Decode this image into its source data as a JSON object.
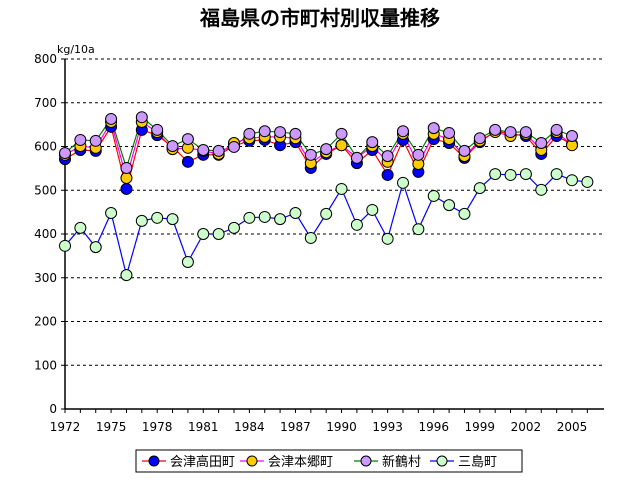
{
  "chart_data": {
    "type": "line",
    "title": "福島県の市町村別収量推移",
    "ylabel": "kg/10a",
    "xlabel": "",
    "ylim": [
      0,
      800
    ],
    "yticks": [
      0,
      100,
      200,
      300,
      400,
      500,
      600,
      700,
      800
    ],
    "xlim": [
      1972,
      2006
    ],
    "xticks": [
      1972,
      1975,
      1978,
      1981,
      1984,
      1987,
      1990,
      1993,
      1996,
      1999,
      2002,
      2005
    ],
    "grid": "horizontal dashed",
    "legend": "bottom",
    "x": [
      1972,
      1973,
      1974,
      1975,
      1976,
      1977,
      1978,
      1979,
      1980,
      1981,
      1982,
      1983,
      1984,
      1985,
      1986,
      1987,
      1988,
      1989,
      1990,
      1991,
      1992,
      1993,
      1994,
      1995,
      1996,
      1997,
      1998,
      1999,
      2000,
      2001,
      2002,
      2003,
      2004,
      2005,
      2006
    ],
    "series": [
      {
        "name": "会津高田町",
        "line": "#ff0000",
        "marker": "#0000ff",
        "values": [
          571,
          592,
          590,
          645,
          503,
          638,
          626,
          599,
          565,
          581,
          581,
          601,
          613,
          615,
          603,
          610,
          551,
          583,
          603,
          562,
          592,
          535,
          615,
          542,
          617,
          608,
          574,
          610,
          635,
          629,
          624,
          583,
          624,
          605,
          null
        ]
      },
      {
        "name": "会津本郷町",
        "line": "#ff00ff",
        "marker": "#ffcc00",
        "values": [
          581,
          601,
          597,
          656,
          528,
          656,
          633,
          594,
          597,
          590,
          583,
          608,
          619,
          622,
          622,
          619,
          562,
          587,
          603,
          574,
          601,
          565,
          629,
          560,
          629,
          617,
          578,
          613,
          633,
          624,
          629,
          592,
          633,
          603,
          null
        ]
      },
      {
        "name": "新鶴村",
        "line": "#008000",
        "marker": "#cc99ff",
        "values": [
          585,
          615,
          613,
          663,
          551,
          667,
          638,
          601,
          617,
          592,
          590,
          599,
          629,
          635,
          633,
          629,
          581,
          594,
          629,
          574,
          610,
          578,
          635,
          581,
          642,
          631,
          590,
          619,
          638,
          633,
          633,
          608,
          638,
          624,
          null
        ]
      },
      {
        "name": "三島町",
        "line": "#0000ff",
        "marker": "#ccffcc",
        "values": [
          373,
          414,
          370,
          448,
          306,
          430,
          437,
          434,
          336,
          400,
          400,
          414,
          437,
          439,
          434,
          448,
          391,
          446,
          503,
          421,
          455,
          389,
          517,
          411,
          487,
          466,
          446,
          505,
          537,
          535,
          537,
          501,
          537,
          523,
          519
        ]
      }
    ]
  }
}
